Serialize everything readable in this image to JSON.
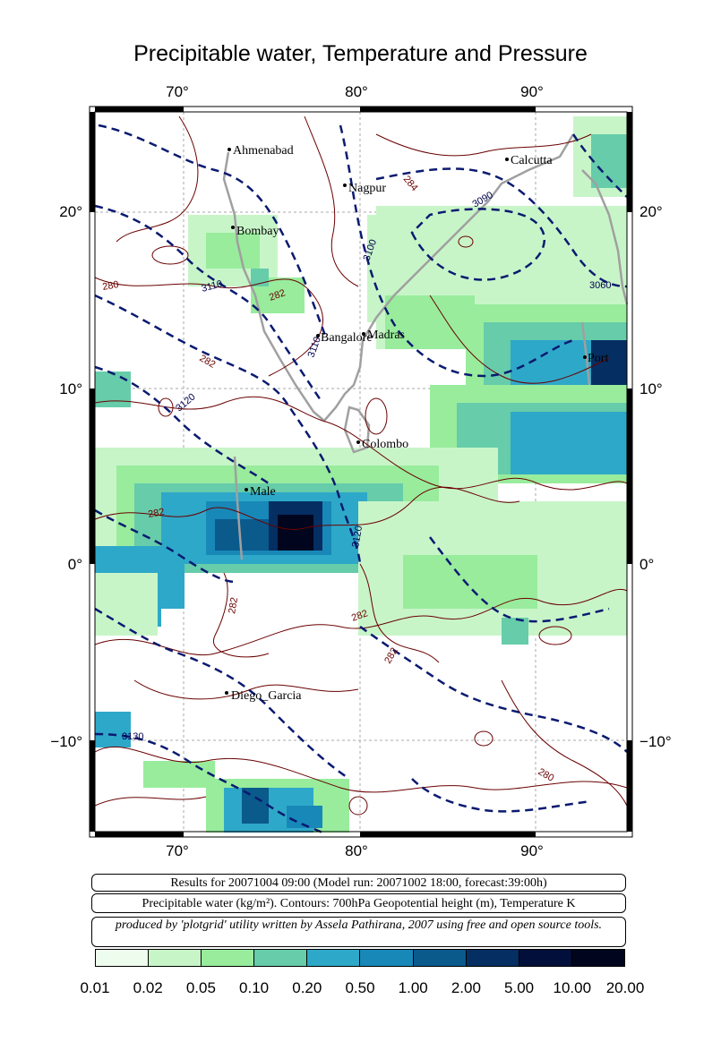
{
  "title": "Precipitable water, Temperature and Pressure",
  "axes": {
    "lon_ticks": [
      "70°",
      "80°",
      "90°"
    ],
    "lat_ticks": [
      "20°",
      "10°",
      "0°",
      "−10°"
    ]
  },
  "cities": [
    "Ahmenabad",
    "Calcutta",
    "Nagpur",
    "Bombay",
    "Bangalore",
    "Madras",
    "Port",
    "Colombo",
    "Male",
    "Diego_Garcia"
  ],
  "contour_labels": {
    "geopotential": [
      "3090",
      "3100",
      "3060",
      "3110",
      "3110",
      "3120",
      "3120",
      "3130"
    ],
    "temperature": [
      "284",
      "280",
      "282",
      "282",
      "282",
      "282",
      "282",
      "282",
      "282",
      "280"
    ]
  },
  "info": {
    "line1": "Results for 20071004 09:00 (Model run: 20071002 18:00, forecast:39:00h)",
    "line2": "Precipitable water (kg/m²).  Contours: 700hPa Geopotential height (m), Temperature K",
    "line3": "produced by 'plotgrid' utility written by Assela Pathirana, 2007 using free and open source tools."
  },
  "legend": {
    "labels": [
      "0.01",
      "0.02",
      "0.05",
      "0.10",
      "0.20",
      "0.50",
      "1.00",
      "2.00",
      "5.00",
      "10.00",
      "20.00"
    ],
    "colors": [
      "#eefcee",
      "#c8f5c8",
      "#98ec9c",
      "#66ccaa",
      "#2ea8c8",
      "#1888b8",
      "#0a5a8c",
      "#052e62",
      "#020f3a",
      "#01061e"
    ]
  }
}
